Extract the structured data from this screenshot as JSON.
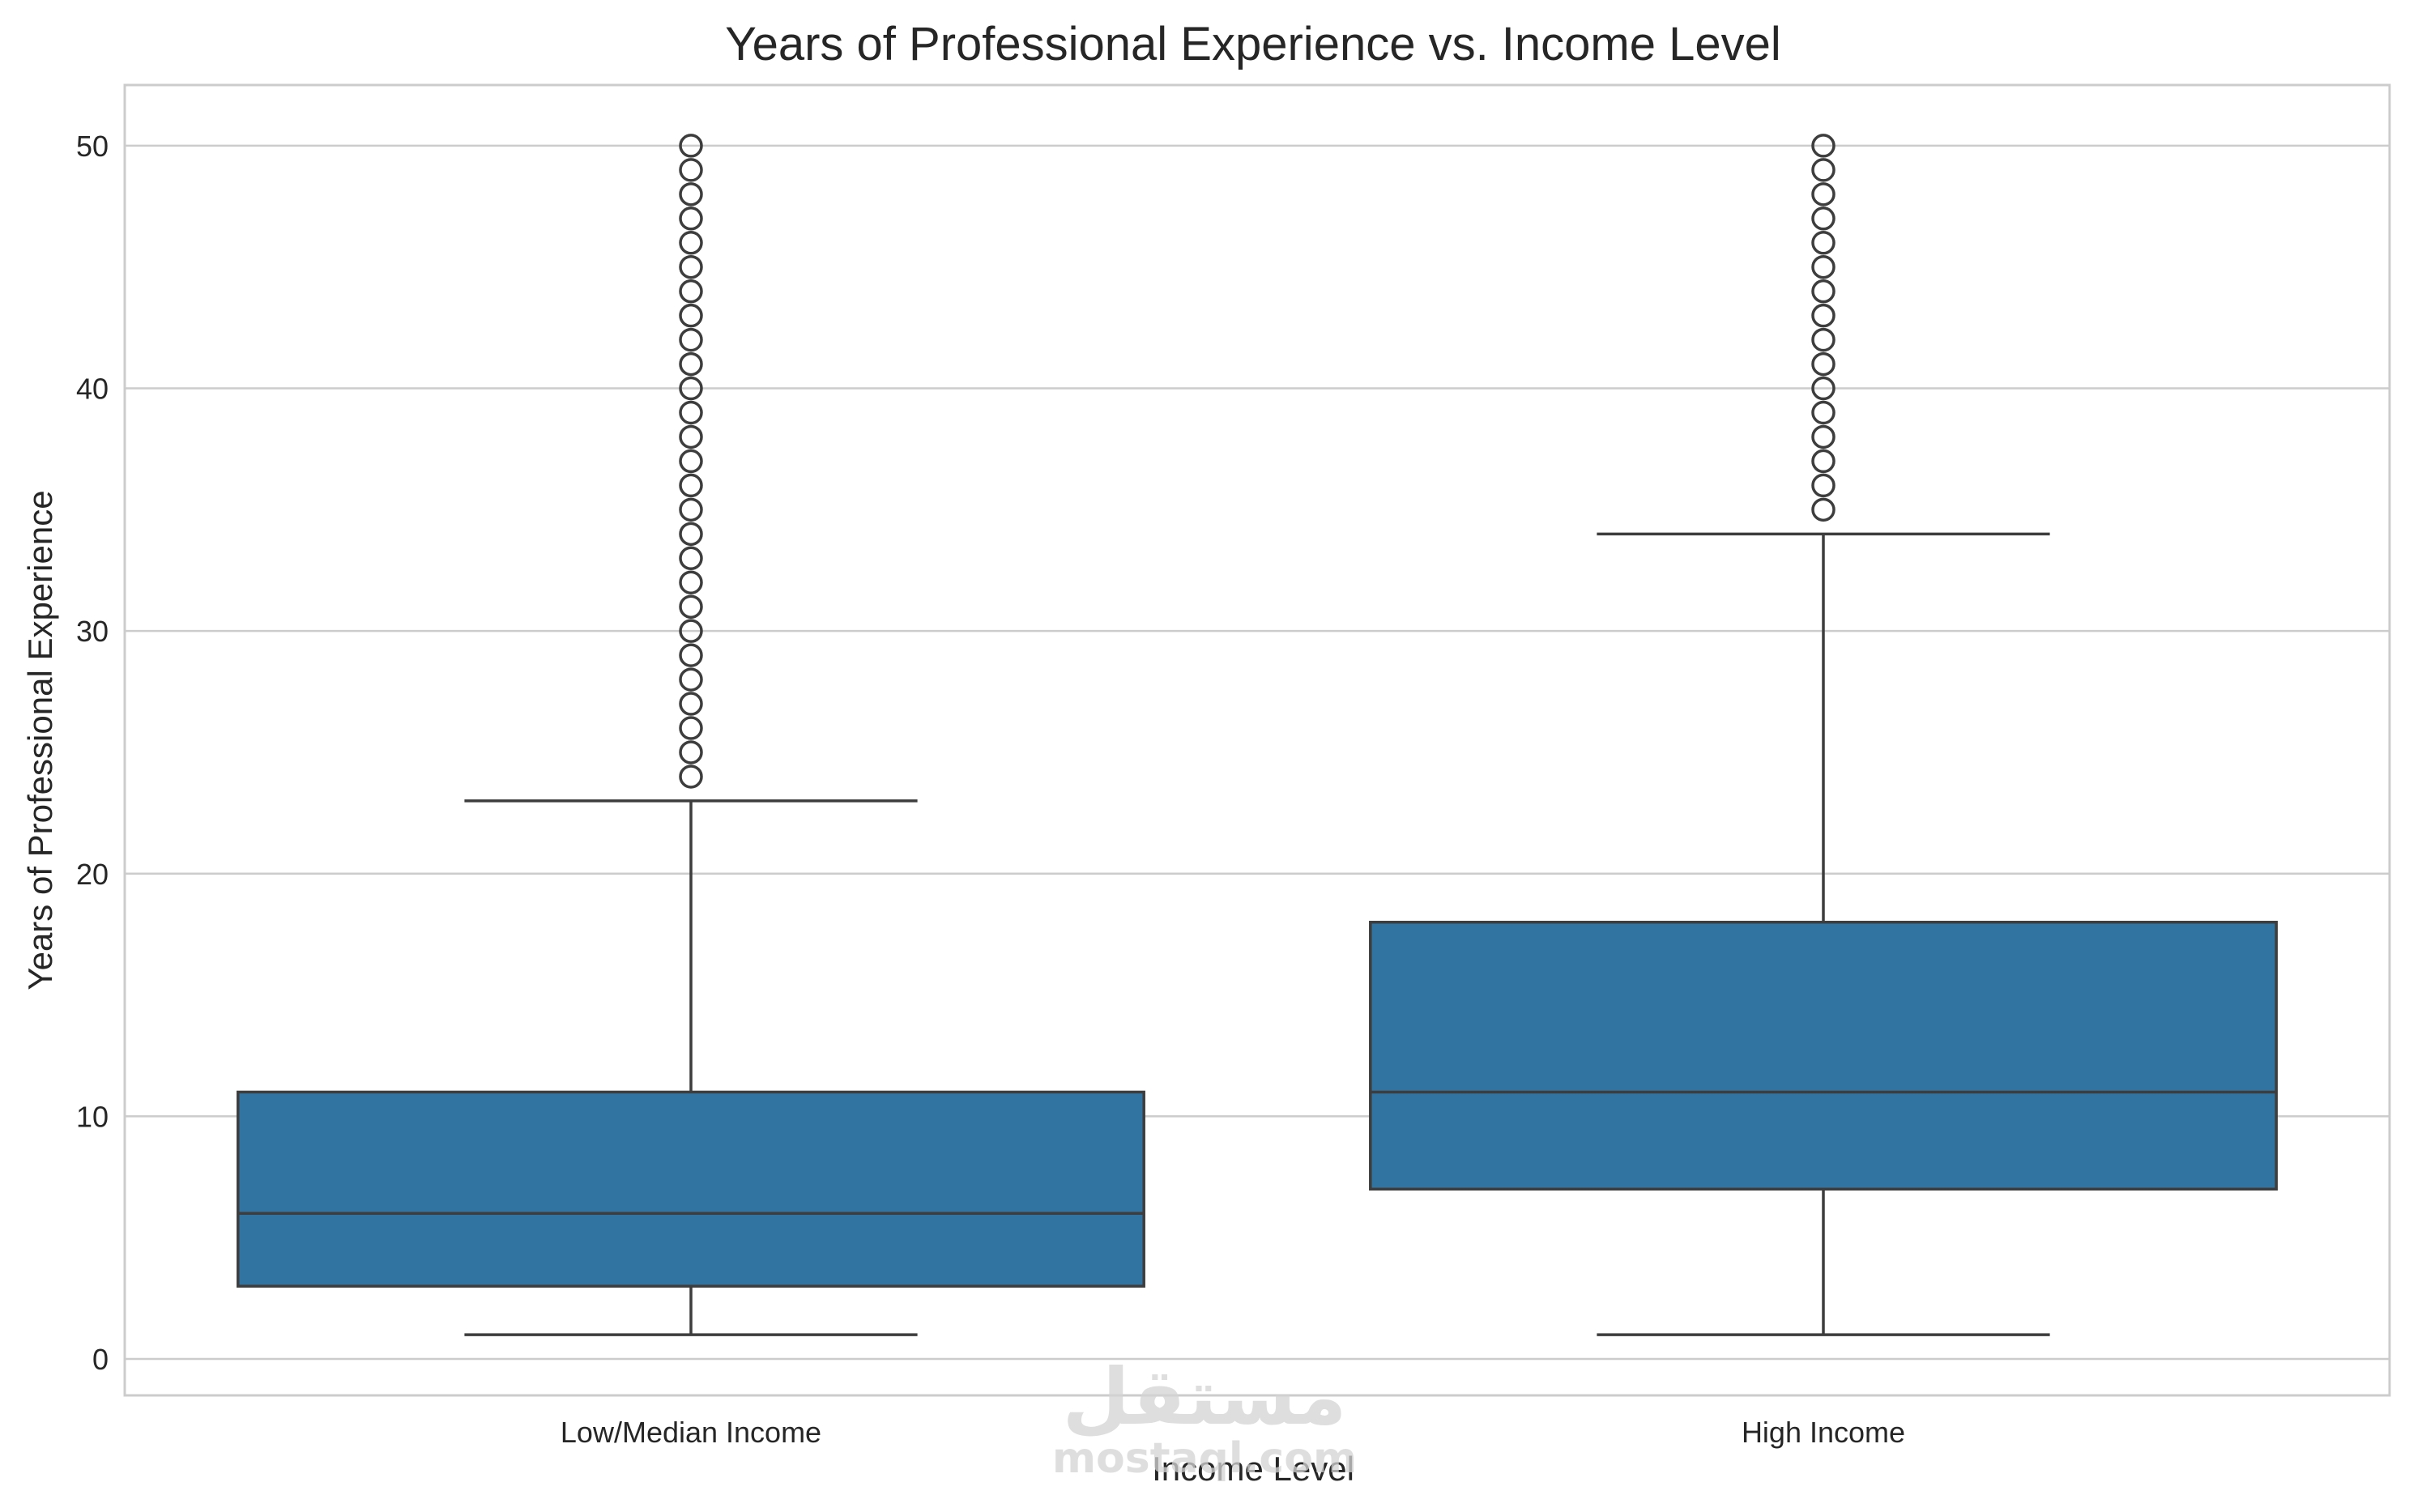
{
  "chart_data": {
    "type": "box",
    "title": "Years of Professional Experience vs. Income Level",
    "xlabel": "Income Level",
    "ylabel": "Years of Professional Experience",
    "ylim": [
      -1.5,
      52.5
    ],
    "yticks": [
      0,
      10,
      20,
      30,
      40,
      50
    ],
    "grid": true,
    "legend": "none",
    "box_color": "#3274a1",
    "line_color": "#3d3d3d",
    "categories": [
      "Low/Median Income",
      "High Income"
    ],
    "boxes": [
      {
        "category": "Low/Median Income",
        "whisker_low": 1,
        "q1": 3,
        "median": 6,
        "q3": 11,
        "whisker_high": 23,
        "outliers": [
          24,
          25,
          26,
          27,
          28,
          29,
          30,
          31,
          32,
          33,
          34,
          35,
          36,
          37,
          38,
          39,
          40,
          41,
          42,
          43,
          44,
          45,
          46,
          47,
          48,
          49,
          50
        ]
      },
      {
        "category": "High Income",
        "whisker_low": 1,
        "q1": 7,
        "median": 11,
        "q3": 18,
        "whisker_high": 34,
        "outliers": [
          35,
          36,
          37,
          38,
          39,
          40,
          41,
          42,
          43,
          44,
          45,
          46,
          47,
          48,
          49,
          50
        ]
      }
    ]
  },
  "watermark": {
    "arabic": "مستقل",
    "latin": "mostaql.com"
  }
}
